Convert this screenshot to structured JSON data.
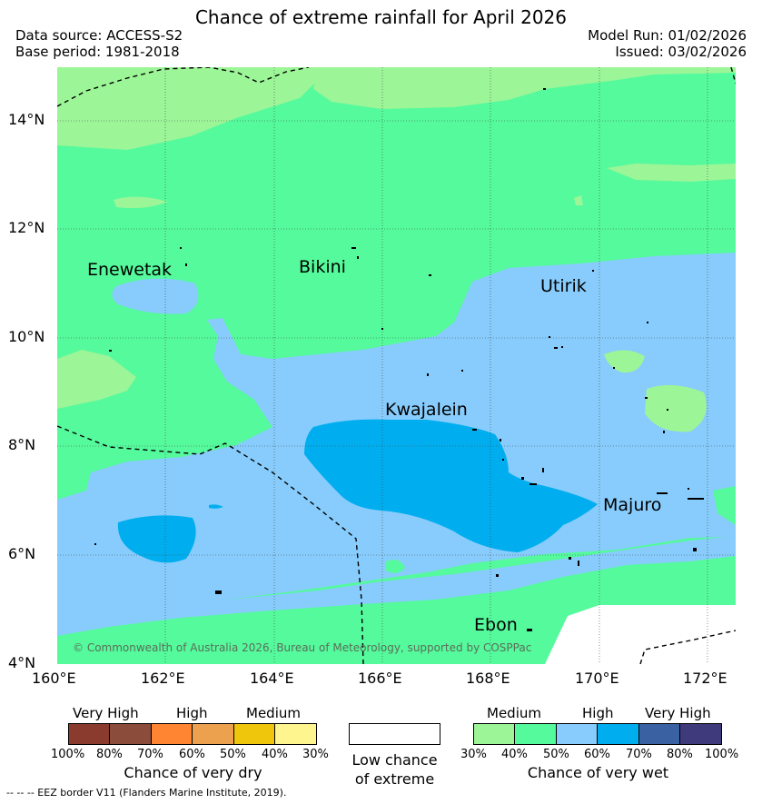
{
  "header": {
    "title": "Chance of extreme rainfall for April 2026",
    "data_source": "Data source: ACCESS-S2",
    "base_period": "Base period: 1981-2018",
    "model_run": "Model Run: 01/02/2026",
    "issued": "Issued: 03/02/2026"
  },
  "map": {
    "lat_labels": [
      "14°N",
      "12°N",
      "10°N",
      "8°N",
      "6°N",
      "4°N"
    ],
    "lon_labels": [
      "160°E",
      "162°E",
      "164°E",
      "166°E",
      "168°E",
      "170°E",
      "172°E"
    ],
    "places": {
      "enewetak": "Enewetak",
      "bikini": "Bikini",
      "utirik": "Utirik",
      "kwajalein": "Kwajalein",
      "majuro": "Majuro",
      "ebon": "Ebon"
    },
    "copyright": "© Commonwealth of Australia 2026, Bureau of Meteorology, supported by COSPPac"
  },
  "legend_dry": {
    "categories": [
      "Very High",
      "High",
      "Medium"
    ],
    "ticks": [
      "100%",
      "80%",
      "70%",
      "60%",
      "50%",
      "40%",
      "30%"
    ],
    "colors": [
      "#8b3a2e",
      "#8b4c3c",
      "#ff8533",
      "#eba14e",
      "#f0c60c",
      "#fff58f"
    ],
    "title": "Chance of very dry"
  },
  "legend_low": {
    "line1": "Low chance",
    "line2": "of extreme",
    "color": "#ffffff"
  },
  "legend_wet": {
    "categories": [
      "Medium",
      "High",
      "Very High"
    ],
    "ticks": [
      "30%",
      "40%",
      "50%",
      "60%",
      "70%",
      "80%",
      "100%"
    ],
    "colors": [
      "#9cf597",
      "#55fa9c",
      "#87ccfc",
      "#00aeef",
      "#3a62a2",
      "#3e3a7c"
    ],
    "title": "Chance of very wet"
  },
  "footer": {
    "eez_note": "--  --  -- EEZ border V11 (Flanders Marine Institute, 2019)."
  }
}
